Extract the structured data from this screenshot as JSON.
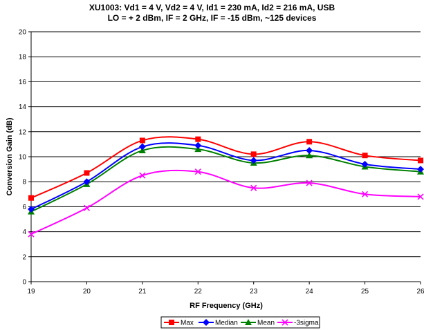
{
  "title_line1": "XU1003: Vd1 = 4 V, Vd2 = 4 V, Id1 = 230 mA, Id2 = 216 mA, USB",
  "title_line2": "LO = + 2 dBm, IF = 2 GHz, IF = -15 dBm, ~125 devices",
  "chart_data": {
    "type": "line",
    "smooth": true,
    "xlabel": "RF Frequency (GHz)",
    "ylabel": "Conversion Gain (dB)",
    "xlim": [
      19,
      26
    ],
    "ylim": [
      0,
      20
    ],
    "x_ticks": [
      19,
      20,
      21,
      22,
      23,
      24,
      25,
      26
    ],
    "y_ticks": [
      0,
      2,
      4,
      6,
      8,
      10,
      12,
      14,
      16,
      18,
      20
    ],
    "grid": "horizontal",
    "legend_position": "bottom",
    "x": [
      19,
      20,
      21,
      22,
      23,
      24,
      25,
      26
    ],
    "series": [
      {
        "name": "Max",
        "color": "#ff0000",
        "marker": "square",
        "values": [
          6.7,
          8.7,
          11.3,
          11.4,
          10.2,
          11.2,
          10.1,
          9.7
        ]
      },
      {
        "name": "Median",
        "color": "#0000ff",
        "marker": "diamond",
        "values": [
          5.8,
          8.0,
          10.8,
          10.9,
          9.7,
          10.5,
          9.4,
          9.0
        ]
      },
      {
        "name": "Mean",
        "color": "#008000",
        "marker": "triangle",
        "values": [
          5.6,
          7.8,
          10.5,
          10.6,
          9.5,
          10.1,
          9.2,
          8.8
        ]
      },
      {
        "name": "-3sigma",
        "color": "#ff00ff",
        "marker": "x",
        "values": [
          3.8,
          5.9,
          8.5,
          8.8,
          7.5,
          7.9,
          7.0,
          6.8
        ]
      }
    ]
  }
}
